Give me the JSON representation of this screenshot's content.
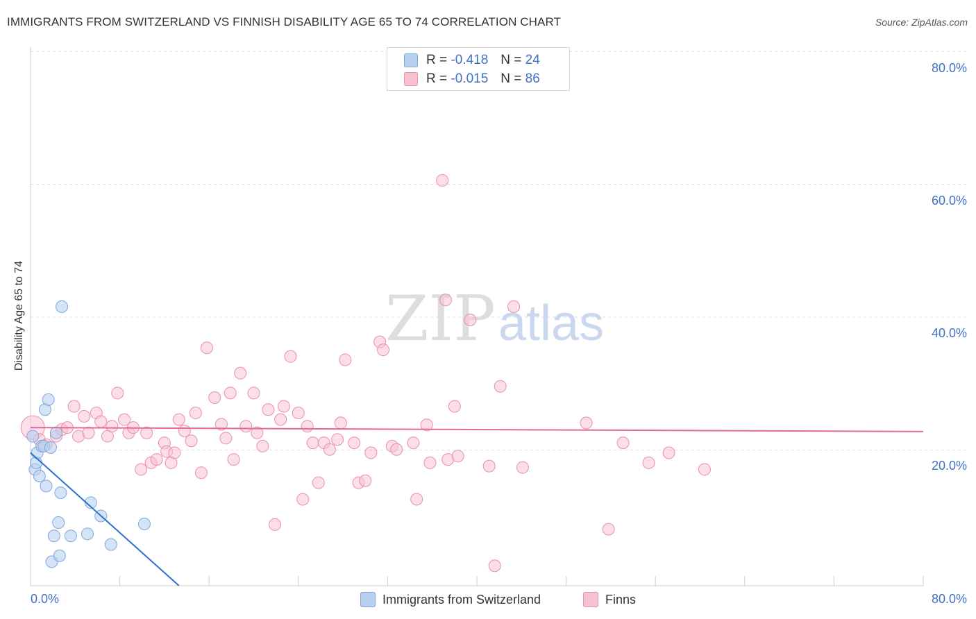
{
  "title": "IMMIGRANTS FROM SWITZERLAND VS FINNISH DISABILITY AGE 65 TO 74 CORRELATION CHART",
  "source": "Source: ZipAtlas.com",
  "watermark": {
    "part1": "ZIP",
    "part2": "atlas"
  },
  "legend": {
    "rows": [
      {
        "r_label": "R = ",
        "r_value": "-0.418",
        "n_label": "N = ",
        "n_value": "24"
      },
      {
        "r_label": "R = ",
        "r_value": "-0.015",
        "n_label": "N = ",
        "n_value": "86"
      }
    ]
  },
  "colors": {
    "blue_fill": "#b9d0f0",
    "blue_stroke": "#7ea6dc",
    "blue_line": "#2f6fd0",
    "pink_fill": "#f7c2d4",
    "pink_stroke": "#e98fae",
    "pink_line": "#e46a95",
    "axis_text": "#3f72c4",
    "grid": "#dddddd"
  },
  "chart_data": {
    "type": "scatter",
    "title": "IMMIGRANTS FROM SWITZERLAND VS FINNISH DISABILITY AGE 65 TO 74 CORRELATION CHART",
    "xlabel": "",
    "ylabel": "Disability Age 65 to 74",
    "xlim": [
      0,
      80
    ],
    "ylim": [
      0,
      80
    ],
    "x_tick_labels": [
      "0.0%",
      "80.0%"
    ],
    "y_tick_labels": [
      "20.0%",
      "40.0%",
      "60.0%",
      "80.0%"
    ],
    "y_ticks": [
      20,
      40,
      60,
      80
    ],
    "series": [
      {
        "name": "Immigrants from Switzerland",
        "color": "blue",
        "trend": {
          "x": [
            0,
            13.3
          ],
          "y": [
            20.0,
            0
          ]
        },
        "points": [
          [
            0.2,
            22.5
          ],
          [
            0.4,
            17.5
          ],
          [
            0.5,
            18.5
          ],
          [
            0.6,
            20.0
          ],
          [
            0.8,
            16.5
          ],
          [
            1.0,
            21.0
          ],
          [
            1.2,
            21.0
          ],
          [
            1.3,
            26.5
          ],
          [
            1.4,
            15.0
          ],
          [
            1.6,
            28.0
          ],
          [
            1.8,
            20.8
          ],
          [
            1.9,
            3.6
          ],
          [
            2.1,
            7.5
          ],
          [
            2.3,
            23.0
          ],
          [
            2.5,
            9.5
          ],
          [
            2.6,
            4.5
          ],
          [
            2.7,
            14.0
          ],
          [
            2.8,
            42.0
          ],
          [
            3.6,
            7.5
          ],
          [
            5.1,
            7.8
          ],
          [
            5.4,
            12.5
          ],
          [
            6.3,
            10.5
          ],
          [
            7.2,
            6.2
          ],
          [
            10.2,
            9.3
          ]
        ]
      },
      {
        "name": "Finns",
        "color": "pink",
        "trend": {
          "x": [
            0,
            80
          ],
          "y": [
            23.8,
            23.2
          ]
        },
        "points": [
          [
            0.2,
            23.8
          ],
          [
            0.8,
            22.0
          ],
          [
            1.4,
            21.2
          ],
          [
            2.3,
            22.5
          ],
          [
            2.8,
            23.5
          ],
          [
            3.3,
            23.8
          ],
          [
            3.9,
            27.0
          ],
          [
            4.3,
            22.5
          ],
          [
            4.8,
            25.5
          ],
          [
            5.2,
            23.0
          ],
          [
            5.9,
            26.0
          ],
          [
            6.3,
            24.7
          ],
          [
            6.9,
            22.5
          ],
          [
            7.3,
            24.0
          ],
          [
            7.8,
            29.0
          ],
          [
            8.4,
            25.0
          ],
          [
            8.8,
            23.0
          ],
          [
            9.2,
            23.8
          ],
          [
            9.9,
            17.5
          ],
          [
            10.4,
            23.0
          ],
          [
            10.8,
            18.5
          ],
          [
            11.3,
            19.0
          ],
          [
            12.0,
            21.5
          ],
          [
            12.2,
            20.2
          ],
          [
            12.6,
            18.5
          ],
          [
            12.9,
            20.0
          ],
          [
            13.3,
            25.0
          ],
          [
            13.8,
            23.3
          ],
          [
            14.4,
            21.8
          ],
          [
            14.8,
            26.0
          ],
          [
            15.3,
            17.0
          ],
          [
            15.8,
            35.8
          ],
          [
            16.5,
            28.3
          ],
          [
            17.1,
            24.3
          ],
          [
            17.5,
            22.2
          ],
          [
            17.9,
            29.0
          ],
          [
            18.2,
            19.0
          ],
          [
            18.8,
            32.0
          ],
          [
            19.3,
            24.0
          ],
          [
            20.0,
            29.0
          ],
          [
            20.3,
            23.0
          ],
          [
            20.8,
            21.0
          ],
          [
            21.3,
            26.5
          ],
          [
            21.9,
            9.2
          ],
          [
            22.4,
            25.0
          ],
          [
            22.7,
            27.0
          ],
          [
            23.3,
            34.5
          ],
          [
            24.0,
            26.0
          ],
          [
            24.4,
            13.0
          ],
          [
            24.8,
            24.0
          ],
          [
            25.3,
            21.5
          ],
          [
            25.8,
            15.5
          ],
          [
            26.3,
            21.5
          ],
          [
            26.8,
            20.5
          ],
          [
            27.5,
            22.0
          ],
          [
            27.8,
            24.5
          ],
          [
            28.2,
            34.0
          ],
          [
            29.0,
            21.5
          ],
          [
            29.4,
            15.5
          ],
          [
            30.0,
            15.8
          ],
          [
            30.5,
            20.0
          ],
          [
            31.3,
            36.7
          ],
          [
            31.6,
            35.5
          ],
          [
            32.4,
            21.0
          ],
          [
            32.8,
            20.5
          ],
          [
            34.3,
            21.5
          ],
          [
            34.6,
            13.0
          ],
          [
            35.8,
            18.5
          ],
          [
            35.5,
            24.2
          ],
          [
            36.9,
            61.0
          ],
          [
            37.2,
            43.0
          ],
          [
            37.4,
            19.0
          ],
          [
            38.0,
            27.0
          ],
          [
            38.3,
            19.5
          ],
          [
            39.4,
            40.0
          ],
          [
            41.1,
            18.0
          ],
          [
            41.6,
            3.0
          ],
          [
            42.1,
            30.0
          ],
          [
            43.3,
            42.0
          ],
          [
            44.1,
            17.8
          ],
          [
            49.8,
            24.5
          ],
          [
            51.8,
            8.5
          ],
          [
            53.1,
            21.5
          ],
          [
            55.4,
            18.5
          ],
          [
            57.2,
            20.0
          ],
          [
            60.4,
            17.5
          ]
        ]
      }
    ],
    "legend_position": "top-center"
  }
}
